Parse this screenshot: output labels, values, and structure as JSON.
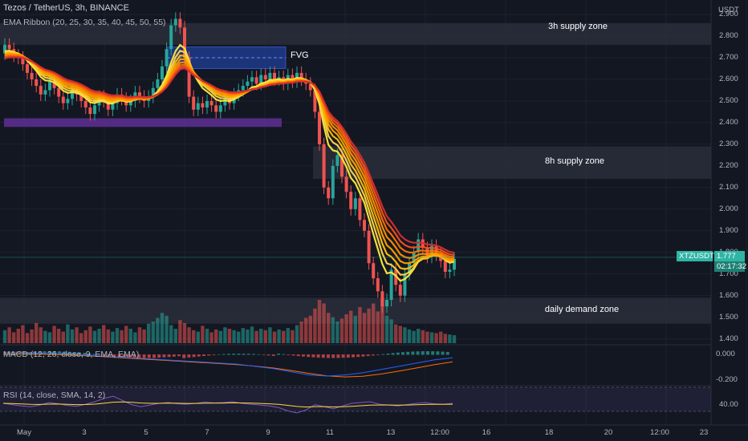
{
  "header": {
    "symbol_line": "Tezos / TetherUS, 3h, BINANCE",
    "ribbon_legend": "EMA Ribbon (20, 25, 30, 35, 40, 45, 50, 55)"
  },
  "price_axis": {
    "unit": "USDT",
    "ticks": [
      "2.900",
      "2.800",
      "2.700",
      "2.600",
      "2.500",
      "2.400",
      "2.300",
      "2.200",
      "2.100",
      "2.000",
      "1.900",
      "1.800",
      "1.700",
      "1.600",
      "1.500",
      "1.400"
    ],
    "current_symbol": "XTZUSDT",
    "current_price": "1.777",
    "countdown": "02:17:32"
  },
  "zones": {
    "supply_3h": "3h supply zone",
    "supply_8h": "8h supply zone",
    "demand_daily": "daily demand zone",
    "fvg": "FVG"
  },
  "macd": {
    "legend": "MACD (12, 26, close, 9, EMA, EMA)",
    "ticks": [
      "0.000",
      "-0.200"
    ]
  },
  "rsi": {
    "legend": "RSI (14, close, SMA, 14, 2)",
    "ticks": [
      "40.00"
    ]
  },
  "time_axis": {
    "labels": [
      "May",
      "3",
      "5",
      "7",
      "9",
      "11",
      "13",
      "12:00",
      "16",
      "18",
      "20",
      "12:00",
      "23"
    ]
  },
  "colors": {
    "background": "#131722",
    "up": "#26a69a",
    "down": "#ef5350",
    "zone": "#2a2e39",
    "fvg": "#1e3a8a",
    "level": "#5b2d8e",
    "macd_line": "#2962ff",
    "signal_line": "#ff6d00",
    "rsi_line": "#7e57c2",
    "rsi_ma": "#fdd835"
  },
  "chart_data": {
    "type": "candlestick",
    "ylim": [
      1.38,
      2.93
    ],
    "candles_close": [
      2.76,
      2.74,
      2.71,
      2.7,
      2.67,
      2.63,
      2.6,
      2.57,
      2.53,
      2.55,
      2.59,
      2.56,
      2.52,
      2.49,
      2.51,
      2.55,
      2.53,
      2.5,
      2.47,
      2.44,
      2.48,
      2.52,
      2.5,
      2.46,
      2.49,
      2.53,
      2.51,
      2.48,
      2.5,
      2.54,
      2.52,
      2.5,
      2.52,
      2.56,
      2.6,
      2.66,
      2.74,
      2.85,
      2.88,
      2.84,
      2.7,
      2.52,
      2.46,
      2.49,
      2.47,
      2.5,
      2.48,
      2.45,
      2.48,
      2.51,
      2.49,
      2.53,
      2.55,
      2.57,
      2.59,
      2.61,
      2.58,
      2.62,
      2.6,
      2.63,
      2.6,
      2.61,
      2.58,
      2.62,
      2.59,
      2.63,
      2.6,
      2.58,
      2.55,
      2.45,
      2.3,
      2.1,
      2.05,
      2.2,
      2.25,
      2.15,
      2.08,
      2.0,
      2.05,
      1.95,
      1.9,
      1.75,
      1.68,
      1.62,
      1.55,
      1.58,
      1.72,
      1.65,
      1.6,
      1.7,
      1.75,
      1.8,
      1.86,
      1.82,
      1.78,
      1.83,
      1.79,
      1.76,
      1.71,
      1.72,
      1.77
    ],
    "emas_start": [
      2.72,
      2.69
    ],
    "volume": [
      18,
      22,
      15,
      20,
      25,
      14,
      19,
      28,
      22,
      17,
      15,
      24,
      20,
      16,
      26,
      19,
      22,
      14,
      18,
      23,
      17,
      20,
      25,
      19,
      16,
      21,
      18,
      24,
      20,
      15,
      22,
      19,
      27,
      30,
      35,
      42,
      38,
      25,
      20,
      32,
      28,
      22,
      18,
      16,
      24,
      20,
      15,
      19,
      17,
      22,
      20,
      18,
      16,
      21,
      19,
      23,
      17,
      20,
      18,
      22,
      16,
      19,
      17,
      21,
      18,
      25,
      30,
      35,
      38,
      48,
      60,
      55,
      42,
      36,
      30,
      34,
      40,
      45,
      38,
      50,
      42,
      48,
      55,
      44,
      62,
      38,
      33,
      26,
      24,
      22,
      19,
      17,
      20,
      18,
      16,
      15,
      14,
      16,
      13,
      12,
      11
    ],
    "macd_line": [
      0.02,
      0.02,
      0.01,
      0.01,
      0.0,
      -0.01,
      -0.02,
      -0.03,
      -0.04,
      -0.05,
      -0.06,
      -0.07,
      -0.08,
      -0.09,
      -0.11,
      -0.13,
      -0.16,
      -0.19,
      -0.2,
      -0.19,
      -0.17,
      -0.14,
      -0.11,
      -0.08,
      -0.05,
      -0.03
    ],
    "rsi": [
      48,
      45,
      42,
      40,
      44,
      50,
      47,
      43,
      41,
      46,
      52,
      60,
      65,
      55,
      45,
      40,
      44,
      48,
      50,
      47,
      46,
      48,
      51,
      49,
      50,
      52,
      48,
      46,
      44,
      42,
      38,
      30,
      25,
      32,
      45,
      40,
      35,
      42,
      48,
      50,
      52,
      46,
      44,
      42,
      45,
      48,
      50,
      47,
      46,
      48
    ]
  }
}
